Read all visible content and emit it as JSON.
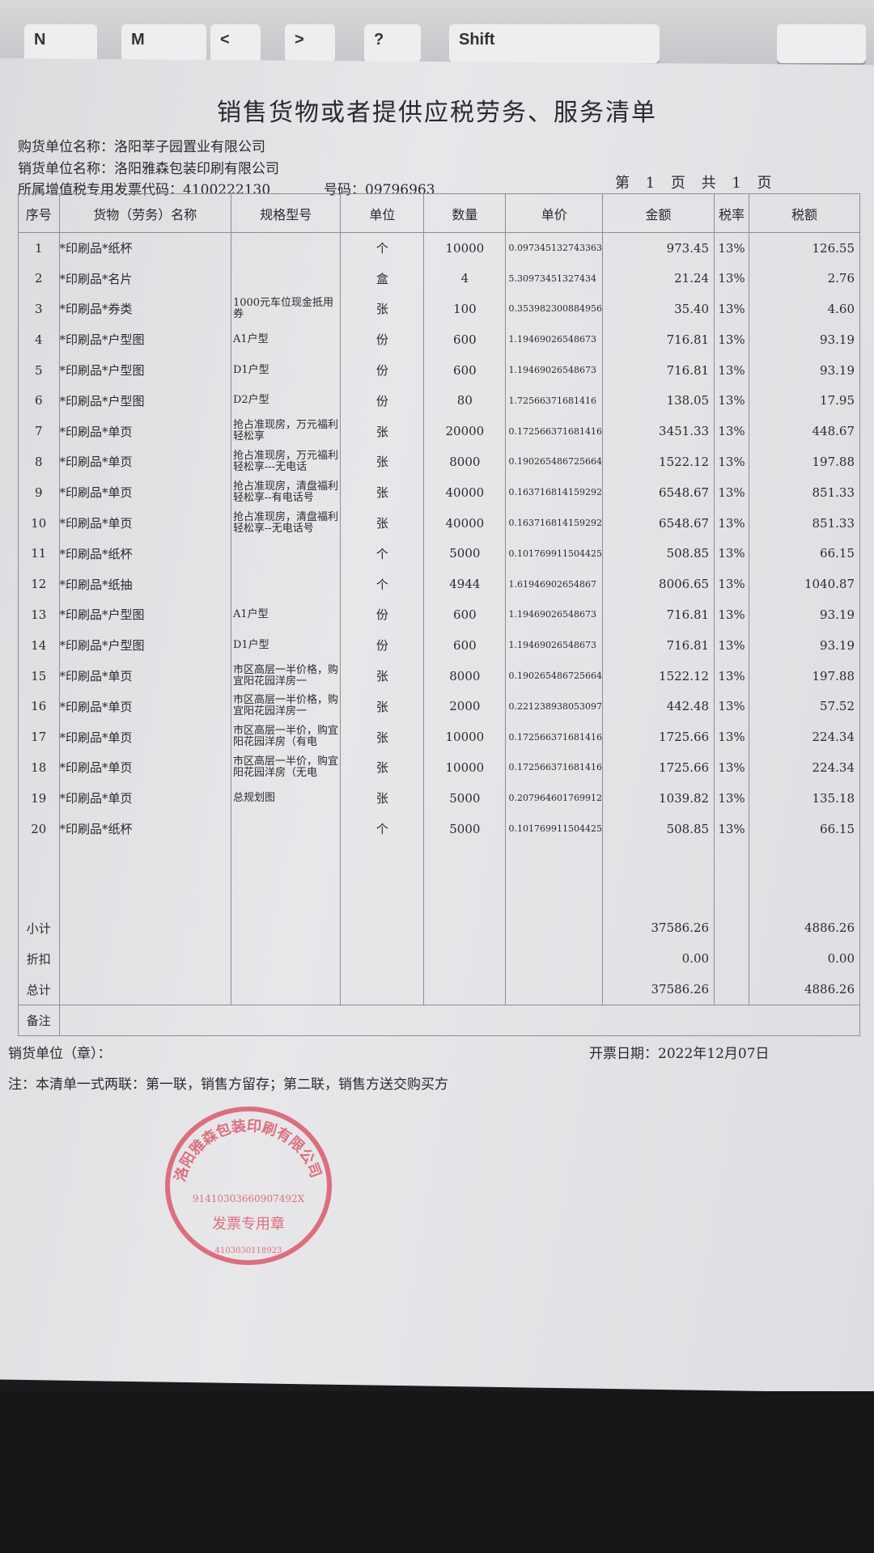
{
  "keyboard": {
    "keys": [
      "N",
      "M",
      "<",
      ">",
      "?",
      "Shift"
    ]
  },
  "title": "销售货物或者提供应税劳务、服务清单",
  "buyer": "购货单位名称：洛阳莘子园置业有限公司",
  "seller": "销货单位名称：洛阳雅森包装印刷有限公司",
  "invoice_code": "所属增值税专用发票代码：4100222130",
  "invoice_number": "号码：09796963",
  "page_info": "第 1 页 共 1 页",
  "headers": [
    "序号",
    "货物（劳务）名称",
    "规格型号",
    "单位",
    "数量",
    "单价",
    "金额",
    "税率",
    "税额"
  ],
  "rows": [
    [
      "1",
      "*印刷品*纸杯",
      "",
      "个",
      "10000",
      "0.097345132743363",
      "973.45",
      "13%",
      "126.55"
    ],
    [
      "2",
      "*印刷品*名片",
      "",
      "盒",
      "4",
      "5.30973451327434",
      "21.24",
      "13%",
      "2.76"
    ],
    [
      "3",
      "*印刷品*券类",
      "1000元车位现金抵用券",
      "张",
      "100",
      "0.353982300884956",
      "35.40",
      "13%",
      "4.60"
    ],
    [
      "4",
      "*印刷品*户型图",
      "A1户型",
      "份",
      "600",
      "1.19469026548673",
      "716.81",
      "13%",
      "93.19"
    ],
    [
      "5",
      "*印刷品*户型图",
      "D1户型",
      "份",
      "600",
      "1.19469026548673",
      "716.81",
      "13%",
      "93.19"
    ],
    [
      "6",
      "*印刷品*户型图",
      "D2户型",
      "份",
      "80",
      "1.72566371681416",
      "138.05",
      "13%",
      "17.95"
    ],
    [
      "7",
      "*印刷品*单页",
      "抢占准现房，万元福利轻松享",
      "张",
      "20000",
      "0.172566371681416",
      "3451.33",
      "13%",
      "448.67"
    ],
    [
      "8",
      "*印刷品*单页",
      "抢占准现房，万元福利轻松享---无电话",
      "张",
      "8000",
      "0.190265486725664",
      "1522.12",
      "13%",
      "197.88"
    ],
    [
      "9",
      "*印刷品*单页",
      "抢占准现房，清盘福利轻松享--有电话号",
      "张",
      "40000",
      "0.163716814159292",
      "6548.67",
      "13%",
      "851.33"
    ],
    [
      "10",
      "*印刷品*单页",
      "抢占准现房，清盘福利轻松享--无电话号",
      "张",
      "40000",
      "0.163716814159292",
      "6548.67",
      "13%",
      "851.33"
    ],
    [
      "11",
      "*印刷品*纸杯",
      "",
      "个",
      "5000",
      "0.101769911504425",
      "508.85",
      "13%",
      "66.15"
    ],
    [
      "12",
      "*印刷品*纸抽",
      "",
      "个",
      "4944",
      "1.61946902654867",
      "8006.65",
      "13%",
      "1040.87"
    ],
    [
      "13",
      "*印刷品*户型图",
      "A1户型",
      "份",
      "600",
      "1.19469026548673",
      "716.81",
      "13%",
      "93.19"
    ],
    [
      "14",
      "*印刷品*户型图",
      "D1户型",
      "份",
      "600",
      "1.19469026548673",
      "716.81",
      "13%",
      "93.19"
    ],
    [
      "15",
      "*印刷品*单页",
      "市区高层一半价格，购宜阳花园洋房一",
      "张",
      "8000",
      "0.190265486725664",
      "1522.12",
      "13%",
      "197.88"
    ],
    [
      "16",
      "*印刷品*单页",
      "市区高层一半价格，购宜阳花园洋房一",
      "张",
      "2000",
      "0.221238938053097",
      "442.48",
      "13%",
      "57.52"
    ],
    [
      "17",
      "*印刷品*单页",
      "市区高层一半价，购宜阳花园洋房（有电",
      "张",
      "10000",
      "0.172566371681416",
      "1725.66",
      "13%",
      "224.34"
    ],
    [
      "18",
      "*印刷品*单页",
      "市区高层一半价，购宜阳花园洋房（无电",
      "张",
      "10000",
      "0.172566371681416",
      "1725.66",
      "13%",
      "224.34"
    ],
    [
      "19",
      "*印刷品*单页",
      "总规划图",
      "张",
      "5000",
      "0.207964601769912",
      "1039.82",
      "13%",
      "135.18"
    ],
    [
      "20",
      "*印刷品*纸杯",
      "",
      "个",
      "5000",
      "0.101769911504425",
      "508.85",
      "13%",
      "66.15"
    ]
  ],
  "summary": [
    {
      "label": "小计",
      "amount": "37586.26",
      "tax": "4886.26"
    },
    {
      "label": "折扣",
      "amount": "0.00",
      "tax": "0.00"
    },
    {
      "label": "总计",
      "amount": "37586.26",
      "tax": "4886.26"
    }
  ],
  "remark_label": "备注",
  "seller_seal_label": "销货单位（章）：",
  "issue_date": "开票日期：2022年12月07日",
  "footnote": "注：本清单一式两联：第一联，销售方留存；第二联，销售方送交购买方",
  "stamp": {
    "company": "洛阳雅森包装印刷有限公司",
    "tax_id": "91410303660907492X",
    "type": "发票专用章",
    "serial": "4103030118923",
    "color": "#d9485a"
  }
}
